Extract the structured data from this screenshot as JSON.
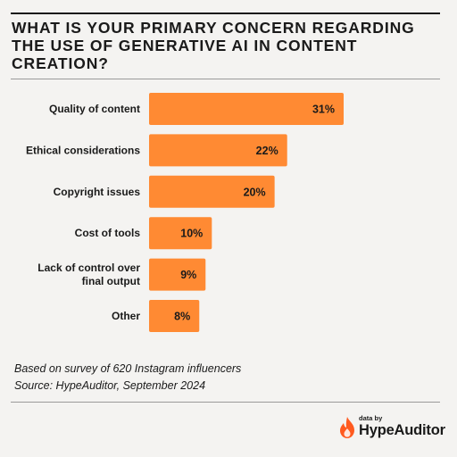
{
  "title": "WHAT IS YOUR PRIMARY CONCERN REGARDING THE USE OF GENERATIVE AI IN CONTENT CREATION?",
  "chart_data": {
    "type": "bar",
    "orientation": "horizontal",
    "title": "WHAT IS YOUR PRIMARY CONCERN REGARDING THE USE OF GENERATIVE AI IN CONTENT CREATION?",
    "categories": [
      [
        "Quality of content"
      ],
      [
        "Ethical considerations"
      ],
      [
        "Copyright issues"
      ],
      [
        "Cost of tools"
      ],
      [
        "Lack of control over",
        "final output"
      ],
      [
        "Other"
      ]
    ],
    "values": [
      31,
      22,
      20,
      10,
      9,
      8
    ],
    "value_labels": [
      "31%",
      "22%",
      "20%",
      "10%",
      "9%",
      "8%"
    ],
    "unit": "%",
    "bar_color": "#ff8a33",
    "grid": false,
    "legend": "none"
  },
  "footnotes": {
    "survey": "Based on survey of 620 Instagram influencers",
    "source": "Source: HypeAuditor, September 2024"
  },
  "logo": {
    "prefix": "data by",
    "brand": "HypeAuditor",
    "icon": "flame-icon",
    "icon_color": "#ff5a1f"
  },
  "colors": {
    "background": "#f4f3f1",
    "text": "#1a1a1a"
  }
}
